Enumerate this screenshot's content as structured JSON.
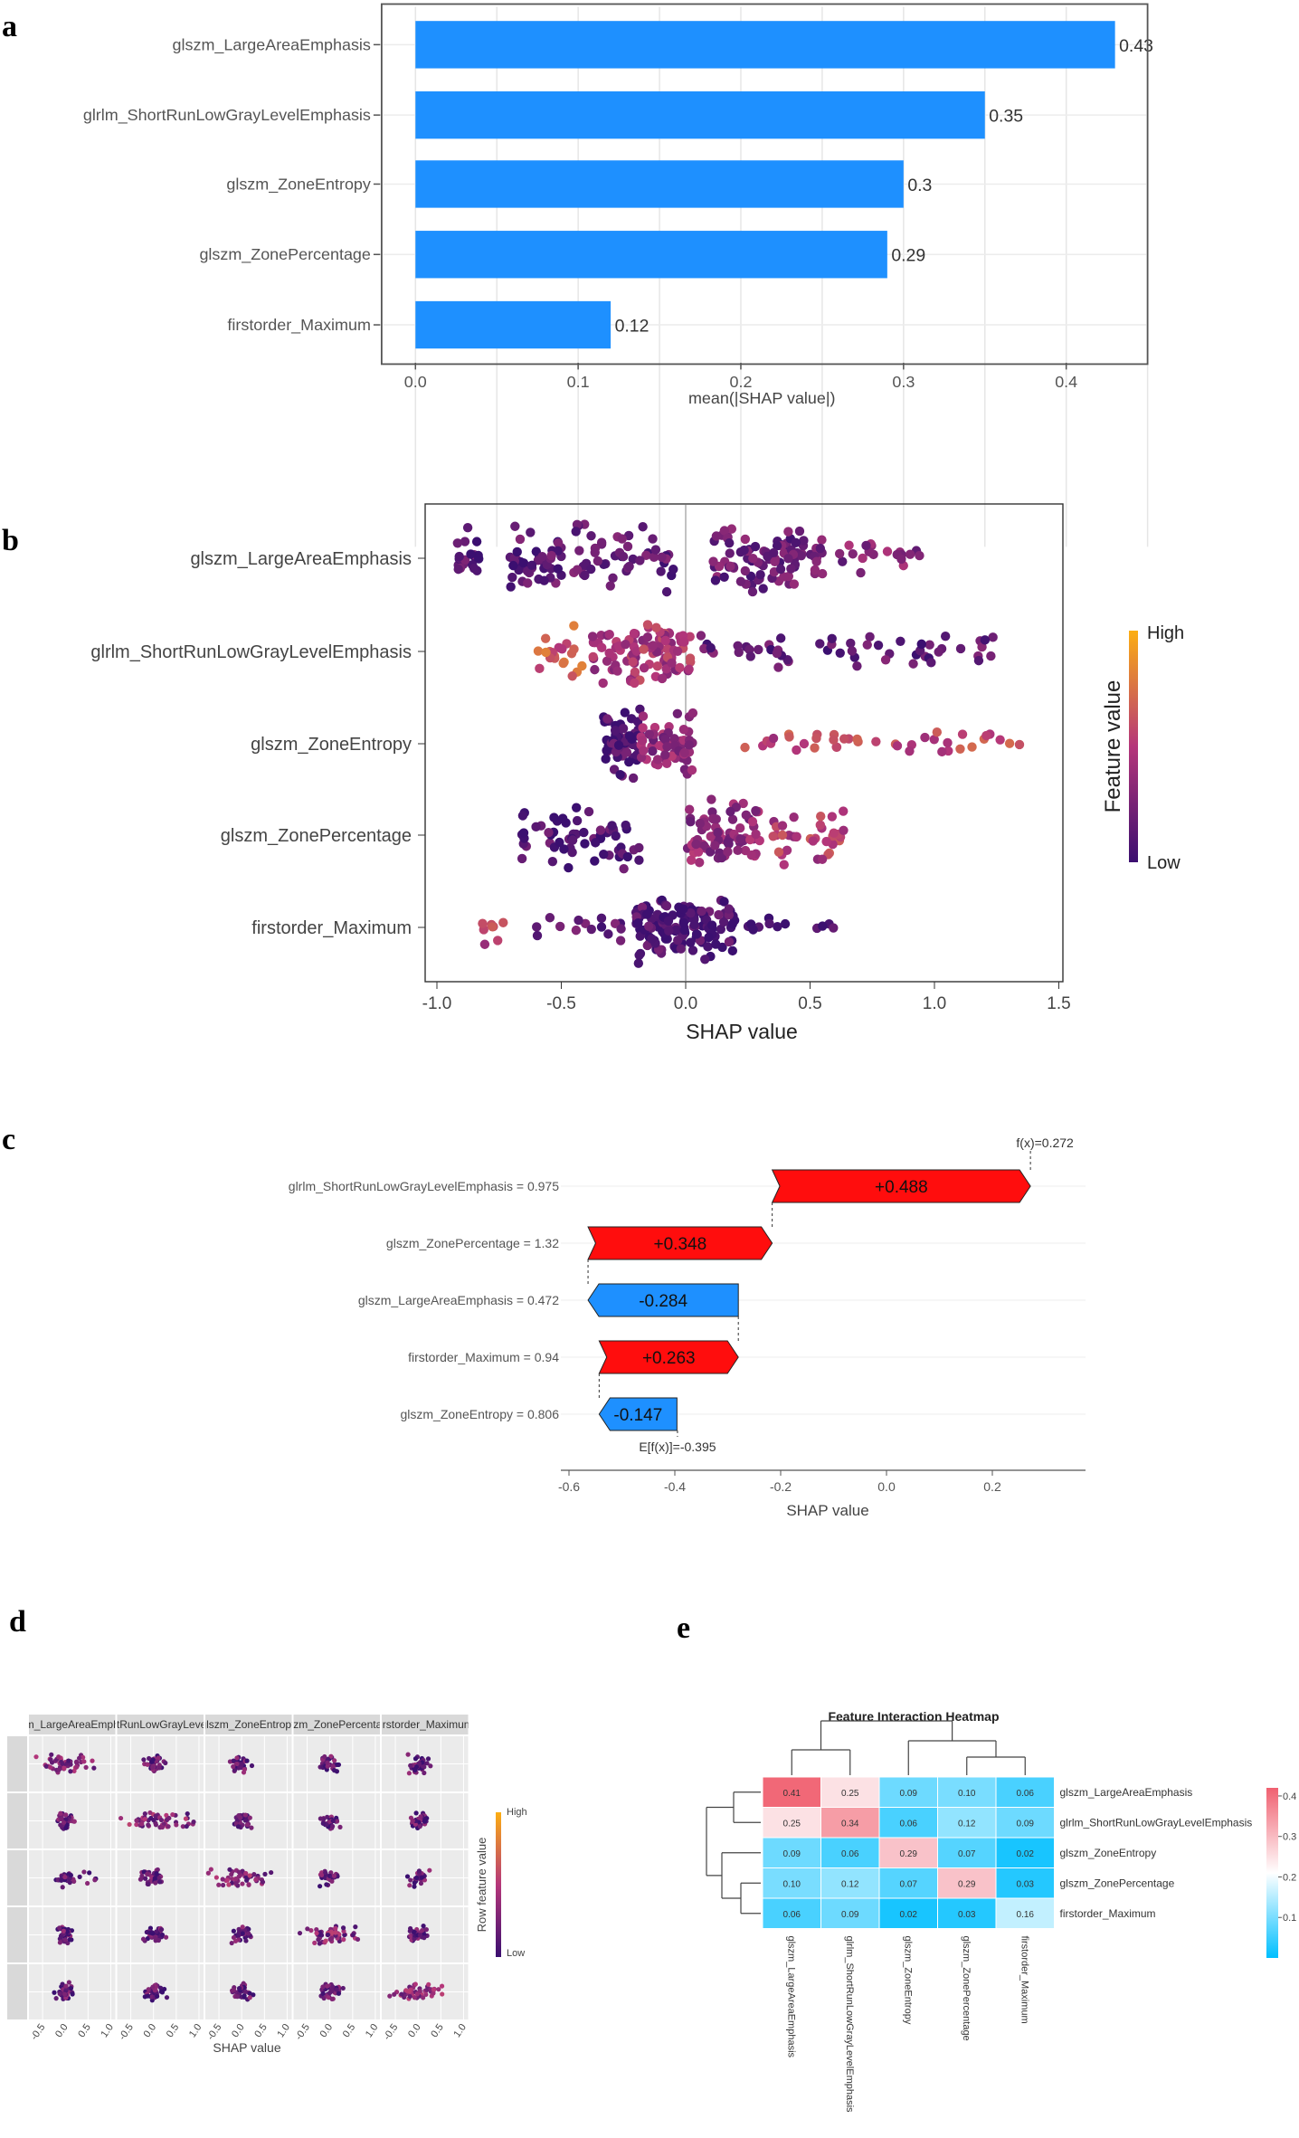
{
  "panel_labels": [
    "a",
    "b",
    "c",
    "d",
    "e"
  ],
  "chart_data": [
    {
      "id": "a",
      "type": "bar",
      "orientation": "horizontal",
      "categories": [
        "glszm_LargeAreaEmphasis",
        "glrlm_ShortRunLowGrayLevelEmphasis",
        "glszm_ZoneEntropy",
        "glszm_ZonePercentage",
        "firstorder_Maximum"
      ],
      "values": [
        0.43,
        0.35,
        0.3,
        0.29,
        0.12
      ],
      "value_labels": [
        "0.43",
        "0.35",
        "0.3",
        "0.29",
        "0.12"
      ],
      "xlabel": "mean(|SHAP value|)",
      "xlim": [
        0,
        0.45
      ],
      "xticks": [
        "0.0",
        "0.1",
        "0.2",
        "0.3",
        "0.4"
      ],
      "grid": true,
      "bar_color": "#1e90ff"
    },
    {
      "id": "b",
      "type": "scatter",
      "subtype": "beeswarm",
      "categories": [
        "glszm_LargeAreaEmphasis",
        "glrlm_ShortRunLowGrayLevelEmphasis",
        "glszm_ZoneEntropy",
        "glszm_ZonePercentage",
        "firstorder_Maximum"
      ],
      "xlabel": "SHAP value",
      "xlim": [
        -1.1,
        1.5
      ],
      "xticks": [
        "-1.0",
        "-0.5",
        "0.0",
        "0.5",
        "1.0",
        "1.5"
      ],
      "legend": {
        "title": "Feature value",
        "high": "High",
        "low": "Low",
        "position": "right"
      },
      "colors": {
        "low": "#3b0f70",
        "mid": "#b5367a",
        "high": "#fcae12"
      },
      "series": [
        {
          "name": "glszm_LargeAreaEmphasis",
          "clusters": [
            [
              -0.92,
              -0.82,
              20,
              0.1
            ],
            [
              -0.72,
              -0.5,
              45,
              0.15
            ],
            [
              -0.45,
              -0.05,
              50,
              0.15
            ],
            [
              0.1,
              0.2,
              20,
              0.2
            ],
            [
              0.22,
              0.55,
              75,
              0.2
            ],
            [
              0.6,
              0.95,
              20,
              0.3
            ]
          ]
        },
        {
          "name": "glrlm_ShortRunLowGrayLevelEmphasis",
          "clusters": [
            [
              -0.6,
              -0.4,
              20,
              0.65
            ],
            [
              -0.38,
              0.02,
              100,
              0.45
            ],
            [
              0.05,
              1.25,
              55,
              0.15
            ]
          ]
        },
        {
          "name": "glszm_ZoneEntropy",
          "clusters": [
            [
              -0.33,
              -0.18,
              60,
              0.08
            ],
            [
              -0.18,
              0.05,
              55,
              0.35
            ],
            [
              0.2,
              1.4,
              40,
              0.55
            ]
          ]
        },
        {
          "name": "glszm_ZonePercentage",
          "clusters": [
            [
              -0.68,
              -0.18,
              60,
              0.08
            ],
            [
              0.0,
              0.3,
              75,
              0.35
            ],
            [
              0.35,
              0.65,
              35,
              0.5
            ]
          ]
        },
        {
          "name": "firstorder_Maximum",
          "clusters": [
            [
              -0.82,
              -0.72,
              8,
              0.55
            ],
            [
              -0.7,
              -0.25,
              15,
              0.15
            ],
            [
              -0.2,
              0.2,
              130,
              0.08
            ],
            [
              0.25,
              0.6,
              12,
              0.1
            ]
          ]
        }
      ]
    },
    {
      "id": "c",
      "type": "bar",
      "subtype": "waterfall",
      "categories": [
        "glrlm_ShortRunLowGrayLevelEmphasis = 0.975",
        "glszm_ZonePercentage = 1.32",
        "glszm_LargeAreaEmphasis = 0.472",
        "firstorder_Maximum = 0.94",
        "glszm_ZoneEntropy = 0.806"
      ],
      "values": [
        0.488,
        0.348,
        -0.284,
        0.263,
        -0.147
      ],
      "value_labels": [
        "+0.488",
        "+0.348",
        "-0.284",
        "+0.263",
        "-0.147"
      ],
      "base_value": -0.395,
      "final_value": 0.272,
      "base_label": "E[f(x)]=-0.395",
      "final_label": "f(x)=0.272",
      "xlabel": "SHAP value",
      "xlim": [
        -0.6,
        0.4
      ],
      "xticks": [
        "-0.6",
        "-0.4",
        "-0.2",
        "0.0",
        "0.2"
      ],
      "colors": {
        "positive": "#ff0d0d",
        "negative": "#1e90ff"
      }
    },
    {
      "id": "d",
      "type": "scatter",
      "subtype": "interaction-beeswarm-grid",
      "facet_labels": [
        "glszm_LargeAreaEmphasis",
        "glrlm_ShortRunLowGrayLevelEmphasis",
        "glszm_ZoneEntropy",
        "glszm_ZonePercentage",
        "firstorder_Maximum"
      ],
      "xlabel": "SHAP value",
      "xticks": [
        "-0.5",
        "0.0",
        "0.5",
        "1.0"
      ],
      "xlim": [
        -0.8,
        1.1
      ],
      "legend": {
        "title": "Row feature value",
        "high": "High",
        "low": "Low",
        "position": "right"
      }
    },
    {
      "id": "e",
      "type": "heatmap",
      "title": "Feature Interaction Heatmap",
      "rows": [
        "glszm_LargeAreaEmphasis",
        "glrlm_ShortRunLowGrayLevelEmphasis",
        "glszm_ZoneEntropy",
        "glszm_ZonePercentage",
        "firstorder_Maximum"
      ],
      "cols": [
        "glszm_LargeAreaEmphasis",
        "glrlm_ShortRunLowGrayLevelEmphasis",
        "glszm_ZoneEntropy",
        "glszm_ZonePercentage",
        "firstorder_Maximum"
      ],
      "values": [
        [
          0.41,
          0.25,
          0.09,
          0.1,
          0.06
        ],
        [
          0.25,
          0.34,
          0.06,
          0.12,
          0.09
        ],
        [
          0.09,
          0.06,
          0.29,
          0.07,
          0.02
        ],
        [
          0.1,
          0.12,
          0.07,
          0.29,
          0.03
        ],
        [
          0.06,
          0.09,
          0.02,
          0.03,
          0.16
        ]
      ],
      "cell_labels": [
        [
          "0.41",
          "0.25",
          "0.09",
          "0.10",
          "0.06"
        ],
        [
          "0.25",
          "0.34",
          "0.06",
          "0.12",
          "0.09"
        ],
        [
          "0.09",
          "0.06",
          "0.29",
          "0.07",
          "0.02"
        ],
        [
          "0.10",
          "0.12",
          "0.07",
          "0.29",
          "0.03"
        ],
        [
          "0.06",
          "0.09",
          "0.02",
          "0.03",
          "0.16"
        ]
      ],
      "colorbar_ticks": [
        "0.4",
        "0.3",
        "0.2",
        "0.1"
      ],
      "colorbar_range": [
        0.0,
        0.42
      ],
      "colors": {
        "low": "#00bfff",
        "mid": "#ffffff",
        "high": "#f06070"
      }
    }
  ]
}
